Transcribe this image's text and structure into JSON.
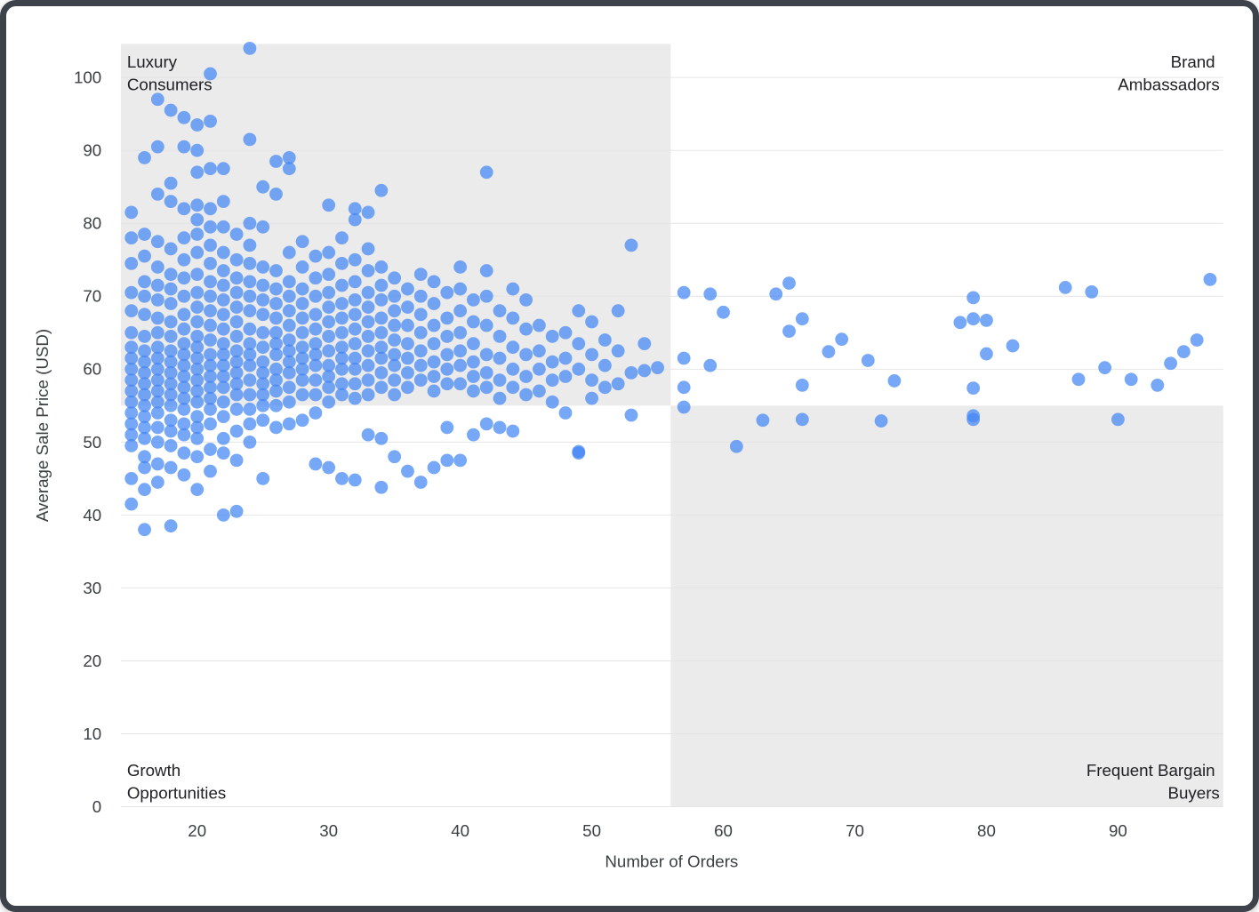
{
  "chart_data": {
    "type": "scatter",
    "title": "",
    "xlabel": "Number of Orders",
    "ylabel": "Average Sale Price (USD)",
    "xlim": [
      14.2,
      98
    ],
    "ylim": [
      0,
      104.6
    ],
    "x_ticks": [
      20,
      30,
      40,
      50,
      60,
      70,
      80,
      90
    ],
    "y_ticks": [
      0,
      10,
      20,
      30,
      40,
      50,
      60,
      70,
      80,
      90,
      100
    ],
    "grid": "horizontal",
    "legend": "none",
    "point_color": "#4285f4",
    "point_opacity": 0.72,
    "shade_color": "#ebebeb",
    "x_divider": 56,
    "y_divider": 55,
    "shaded_quadrants": [
      "top_left",
      "bottom_right"
    ],
    "quadrant_labels": {
      "top_left": [
        "Luxury",
        "Consumers"
      ],
      "top_right": [
        "Brand",
        "Ambassadors"
      ],
      "bottom_left": [
        "Growth",
        "Opportunities"
      ],
      "bottom_right": [
        "Frequent Bargain",
        "Buyers"
      ]
    },
    "columns": [
      {
        "x": 15,
        "ys": [
          81.5,
          78,
          74.5,
          70.5,
          68,
          65,
          63,
          61.5,
          60,
          58.5,
          57,
          55.5,
          54,
          52.5,
          51,
          49.5,
          45,
          41.5
        ]
      },
      {
        "x": 16,
        "ys": [
          89,
          78.5,
          75.5,
          72,
          70,
          67.5,
          64.5,
          62.5,
          61,
          59.5,
          58,
          56.5,
          55,
          53.5,
          52,
          50.5,
          48,
          46.5,
          43.5,
          38
        ]
      },
      {
        "x": 17,
        "ys": [
          97,
          90.5,
          84,
          77.5,
          74,
          71.5,
          69.5,
          67,
          65,
          63,
          61.5,
          60,
          58.5,
          57,
          55.5,
          54,
          52,
          50,
          47,
          44.5
        ]
      },
      {
        "x": 18,
        "ys": [
          95.5,
          85.5,
          83,
          76.5,
          73,
          71,
          69,
          66.5,
          64.5,
          62.5,
          61,
          59.5,
          58,
          56.5,
          55,
          53,
          51.5,
          49.5,
          46.5,
          38.5
        ]
      },
      {
        "x": 19,
        "ys": [
          94.5,
          90.5,
          82,
          78,
          75,
          72.5,
          70,
          67.5,
          65.5,
          63.5,
          62,
          60.5,
          59,
          57.5,
          56,
          54.5,
          52.5,
          51,
          48.5,
          45.5
        ]
      },
      {
        "x": 20,
        "ys": [
          93.5,
          90,
          87,
          82.5,
          80.5,
          78.5,
          76,
          73,
          70.5,
          68.5,
          66.5,
          64.5,
          63,
          61.5,
          60,
          58.5,
          57,
          55.5,
          53.5,
          52,
          50.5,
          48,
          43.5
        ]
      },
      {
        "x": 21,
        "ys": [
          100.5,
          94,
          87.5,
          82,
          79.5,
          77,
          74.5,
          72,
          70,
          68,
          66,
          64,
          62,
          60.5,
          59,
          57.5,
          56,
          54.5,
          52.5,
          49,
          46
        ]
      },
      {
        "x": 22,
        "ys": [
          87.5,
          83,
          79.5,
          76,
          73.5,
          71.5,
          69.5,
          67.5,
          65.5,
          63.5,
          62,
          60.5,
          59,
          57.5,
          55.5,
          53.5,
          50.5,
          48.5,
          40
        ]
      },
      {
        "x": 23,
        "ys": [
          78.5,
          75,
          72.5,
          70.5,
          68.5,
          66.5,
          64.5,
          62.5,
          61,
          59.5,
          58,
          56.5,
          54.5,
          51.5,
          47.5,
          40.5
        ]
      },
      {
        "x": 24,
        "ys": [
          104,
          91.5,
          80,
          77,
          74.5,
          72,
          70,
          68,
          65.5,
          63.5,
          62,
          60.5,
          58.5,
          56.5,
          54.5,
          52.5,
          50
        ]
      },
      {
        "x": 25,
        "ys": [
          85,
          79.5,
          74,
          71.5,
          69.5,
          67.5,
          65,
          63,
          61,
          59.5,
          58,
          56.5,
          55,
          53,
          45
        ]
      },
      {
        "x": 26,
        "ys": [
          88.5,
          84,
          73.5,
          71,
          69,
          67,
          65,
          63.5,
          62,
          60,
          58.5,
          57,
          55,
          52
        ]
      },
      {
        "x": 27,
        "ys": [
          89,
          87.5,
          76,
          72,
          70,
          68,
          66,
          64,
          62.5,
          61,
          59.5,
          57.5,
          55.5,
          52.5
        ]
      },
      {
        "x": 28,
        "ys": [
          77.5,
          74,
          71,
          69,
          67,
          65,
          63,
          61.5,
          60,
          58.5,
          56.5,
          53
        ]
      },
      {
        "x": 29,
        "ys": [
          75.5,
          72.5,
          70,
          67.5,
          65.5,
          63.5,
          62,
          60.5,
          58.5,
          56.5,
          54,
          47
        ]
      },
      {
        "x": 30,
        "ys": [
          82.5,
          76,
          73,
          70.5,
          68.5,
          66.5,
          64.5,
          62.5,
          60.5,
          59,
          57.5,
          55.5,
          46.5
        ]
      },
      {
        "x": 31,
        "ys": [
          78,
          74.5,
          71.5,
          69,
          67,
          65,
          63,
          61.5,
          60,
          58,
          56.5,
          45
        ]
      },
      {
        "x": 32,
        "ys": [
          82,
          80.5,
          75,
          72,
          69.5,
          67.5,
          65.5,
          63.5,
          61.5,
          60,
          58,
          56,
          44.8
        ]
      },
      {
        "x": 33,
        "ys": [
          81.5,
          76.5,
          73.5,
          70.5,
          68.5,
          66.5,
          64.5,
          62.5,
          60.5,
          58.5,
          56.5,
          51
        ]
      },
      {
        "x": 34,
        "ys": [
          84.5,
          74,
          71.5,
          69.5,
          67,
          65,
          63,
          61.5,
          59.5,
          57.5,
          50.5,
          43.8
        ]
      },
      {
        "x": 35,
        "ys": [
          72.5,
          70,
          68,
          66,
          64,
          62,
          60.5,
          58.5,
          56.5,
          48
        ]
      },
      {
        "x": 36,
        "ys": [
          71,
          68.5,
          66,
          63.5,
          61.5,
          59.5,
          57.5,
          46
        ]
      },
      {
        "x": 37,
        "ys": [
          73,
          70,
          67.5,
          65,
          62.5,
          60.5,
          58.5,
          44.5
        ]
      },
      {
        "x": 38,
        "ys": [
          72,
          69,
          66,
          63.5,
          61,
          59,
          57,
          46.5
        ]
      },
      {
        "x": 39,
        "ys": [
          70.5,
          67,
          64.5,
          62,
          60,
          58,
          52,
          47.5
        ]
      },
      {
        "x": 40,
        "ys": [
          74,
          71,
          68,
          65,
          62.5,
          60.5,
          58,
          47.5
        ]
      },
      {
        "x": 41,
        "ys": [
          69.5,
          66.5,
          63.5,
          61,
          59,
          57,
          51
        ]
      },
      {
        "x": 42,
        "ys": [
          87,
          73.5,
          70,
          66,
          62,
          59.5,
          57.5,
          52.5
        ]
      },
      {
        "x": 43,
        "ys": [
          68,
          64.5,
          61.5,
          58.5,
          56,
          52
        ]
      },
      {
        "x": 44,
        "ys": [
          71,
          67,
          63,
          60,
          57.5,
          51.5
        ]
      },
      {
        "x": 45,
        "ys": [
          69.5,
          65.5,
          62,
          59,
          56.5
        ]
      },
      {
        "x": 46,
        "ys": [
          66,
          62.5,
          60,
          57
        ]
      },
      {
        "x": 47,
        "ys": [
          64.5,
          61,
          58.5,
          55.5
        ]
      },
      {
        "x": 48,
        "ys": [
          65,
          61.5,
          59,
          54
        ]
      },
      {
        "x": 49,
        "ys": [
          68,
          63.5,
          60,
          48.5,
          48.7
        ]
      },
      {
        "x": 50,
        "ys": [
          66.5,
          62,
          58.5,
          56
        ]
      },
      {
        "x": 51,
        "ys": [
          64,
          60.5,
          57.5
        ]
      },
      {
        "x": 52,
        "ys": [
          68,
          62.5,
          58
        ]
      },
      {
        "x": 53,
        "ys": [
          77,
          59.5,
          53.7
        ]
      },
      {
        "x": 54,
        "ys": [
          63.5,
          59.8
        ]
      },
      {
        "x": 55,
        "ys": [
          60.2
        ]
      }
    ],
    "scatter_points": [
      [
        57,
        70.5
      ],
      [
        57,
        61.5
      ],
      [
        57,
        57.5
      ],
      [
        57,
        54.8
      ],
      [
        59,
        70.3
      ],
      [
        59,
        60.5
      ],
      [
        60,
        67.8
      ],
      [
        61,
        49.4
      ],
      [
        63,
        53
      ],
      [
        64,
        70.3
      ],
      [
        65,
        71.8
      ],
      [
        65,
        65.2
      ],
      [
        66,
        66.9
      ],
      [
        66,
        57.8
      ],
      [
        66,
        53.1
      ],
      [
        68,
        62.4
      ],
      [
        69,
        64.1
      ],
      [
        71,
        61.2
      ],
      [
        72,
        52.9
      ],
      [
        73,
        58.4
      ],
      [
        78,
        66.4
      ],
      [
        79,
        69.8
      ],
      [
        79,
        66.9
      ],
      [
        79,
        57.4
      ],
      [
        79,
        53.6
      ],
      [
        79,
        53.1
      ],
      [
        80,
        66.7
      ],
      [
        80,
        62.1
      ],
      [
        82,
        63.2
      ],
      [
        86,
        71.2
      ],
      [
        87,
        58.6
      ],
      [
        88,
        70.6
      ],
      [
        89,
        60.2
      ],
      [
        90,
        53.1
      ],
      [
        91,
        58.6
      ],
      [
        93,
        57.8
      ],
      [
        94,
        60.8
      ],
      [
        95,
        62.4
      ],
      [
        96,
        64
      ],
      [
        97,
        72.3
      ]
    ]
  }
}
